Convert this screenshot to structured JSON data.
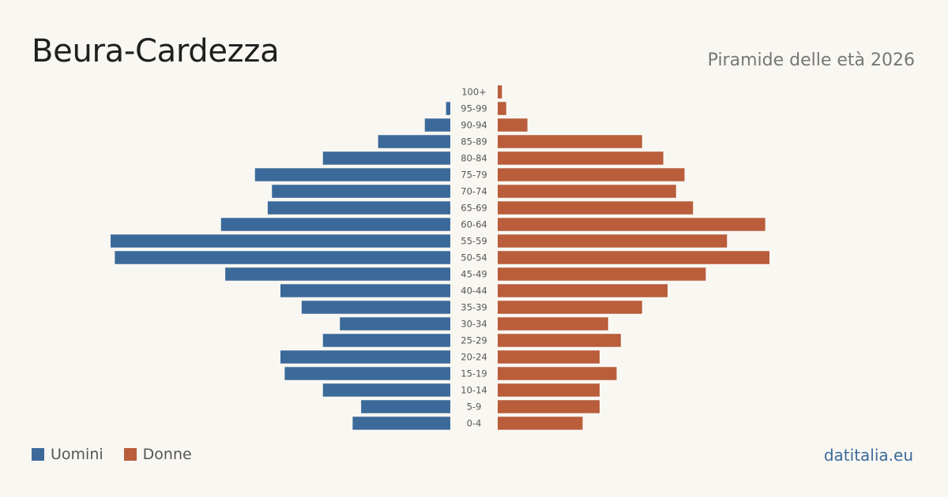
{
  "header": {
    "title": "Beura-Cardezza",
    "subtitle": "Piramide delle età 2026"
  },
  "legend": {
    "men_label": "Uomini",
    "women_label": "Donne"
  },
  "footer": {
    "source": "datitalia.eu"
  },
  "colors": {
    "men": "#3b6a9a",
    "women": "#b95d3b"
  },
  "chart_data": {
    "type": "bar",
    "orientation": "horizontal-population-pyramid",
    "title": "",
    "categories": [
      "100+",
      "95-99",
      "90-94",
      "85-89",
      "80-84",
      "75-79",
      "70-74",
      "65-69",
      "60-64",
      "55-59",
      "50-54",
      "45-49",
      "40-44",
      "35-39",
      "30-34",
      "25-29",
      "20-24",
      "15-19",
      "10-14",
      "5-9",
      "0-4"
    ],
    "series": [
      {
        "name": "Uomini",
        "values": [
          0,
          1,
          6,
          17,
          30,
          46,
          42,
          43,
          54,
          80,
          79,
          53,
          40,
          35,
          26,
          30,
          40,
          39,
          30,
          21,
          23
        ]
      },
      {
        "name": "Donne",
        "values": [
          1,
          2,
          7,
          34,
          39,
          44,
          42,
          46,
          63,
          54,
          64,
          49,
          40,
          34,
          26,
          29,
          24,
          28,
          24,
          24,
          20
        ]
      }
    ],
    "grid": false,
    "legend_position": "bottom-left"
  }
}
